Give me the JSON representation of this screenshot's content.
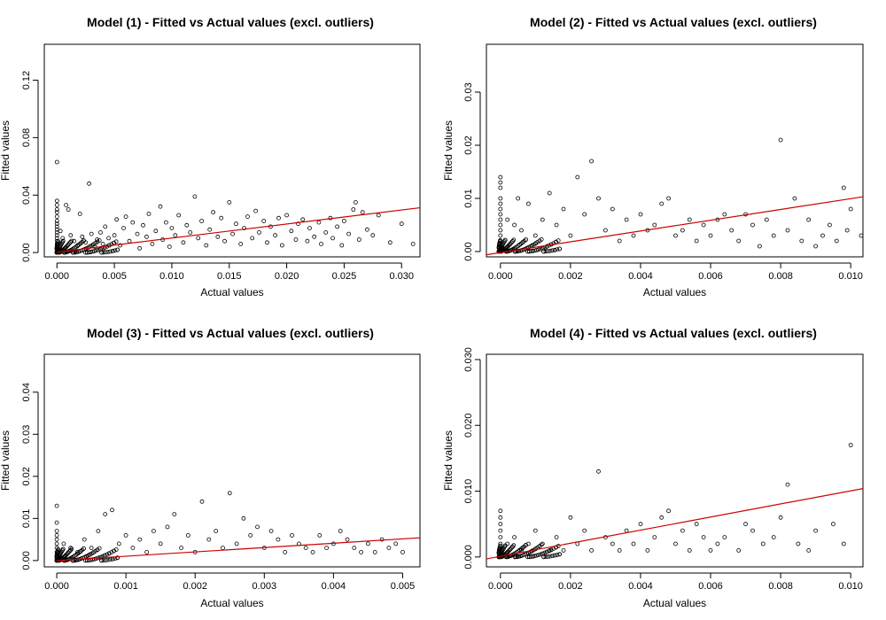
{
  "chart_data": [
    {
      "type": "scatter",
      "title": "Model (1) - Fitted vs Actual values (excl. outliers)",
      "xlabel": "Actual values",
      "ylabel": "Fitted values",
      "xlim": [
        -0.0011,
        0.0316
      ],
      "ylim": [
        -0.003,
        0.145
      ],
      "xticks": [
        0,
        0.005,
        0.01,
        0.015,
        0.02,
        0.025,
        0.03
      ],
      "xtick_labels": [
        "0.000",
        "0.005",
        "0.010",
        "0.015",
        "0.020",
        "0.025",
        "0.030"
      ],
      "yticks": [
        0,
        0.04,
        0.08,
        0.12
      ],
      "ytick_labels": [
        "0.00",
        "0.04",
        "0.08",
        "0.12"
      ],
      "fit_line": {
        "color": "#cc0000",
        "x": [
          0,
          0.0316
        ],
        "y": [
          0.0003,
          0.0312
        ]
      },
      "points": [
        [
          0,
          0.063
        ],
        [
          0,
          0.036
        ],
        [
          0,
          0.033
        ],
        [
          0,
          0.03
        ],
        [
          0,
          0.028
        ],
        [
          0,
          0.025
        ],
        [
          0,
          0.022
        ],
        [
          0,
          0.02
        ],
        [
          0,
          0.018
        ],
        [
          0,
          0.016
        ],
        [
          0,
          0.014
        ],
        [
          0,
          0.012
        ],
        [
          0,
          0.01
        ],
        [
          0,
          0.008
        ],
        [
          0,
          0.006
        ],
        [
          0,
          0.004
        ],
        [
          0,
          0.002
        ],
        [
          0,
          0.001
        ],
        [
          0.0003,
          0.015
        ],
        [
          0.0005,
          0.01
        ],
        [
          0.0008,
          0.033
        ],
        [
          0.001,
          0.03
        ],
        [
          0.0012,
          0.012
        ],
        [
          0.0015,
          0.008
        ],
        [
          0.0018,
          0.005
        ],
        [
          0.002,
          0.027
        ],
        [
          0.0022,
          0.011
        ],
        [
          0.0025,
          0.007
        ],
        [
          0.0028,
          0.048
        ],
        [
          0.003,
          0.013
        ],
        [
          0.0033,
          0.004
        ],
        [
          0.0035,
          0.009
        ],
        [
          0.0038,
          0.014
        ],
        [
          0.004,
          0.006
        ],
        [
          0.0042,
          0.018
        ],
        [
          0.0045,
          0.01
        ],
        [
          0.005,
          0.012
        ],
        [
          0.0052,
          0.023
        ],
        [
          0.0055,
          0.005
        ],
        [
          0.0058,
          0.017
        ],
        [
          0.006,
          0.025
        ],
        [
          0.0063,
          0.008
        ],
        [
          0.0066,
          0.021
        ],
        [
          0.007,
          0.013
        ],
        [
          0.0072,
          0.003
        ],
        [
          0.0075,
          0.019
        ],
        [
          0.0078,
          0.011
        ],
        [
          0.008,
          0.027
        ],
        [
          0.0083,
          0.006
        ],
        [
          0.0086,
          0.015
        ],
        [
          0.009,
          0.032
        ],
        [
          0.0092,
          0.009
        ],
        [
          0.0095,
          0.021
        ],
        [
          0.0098,
          0.004
        ],
        [
          0.01,
          0.017
        ],
        [
          0.0103,
          0.012
        ],
        [
          0.0106,
          0.026
        ],
        [
          0.011,
          0.007
        ],
        [
          0.0113,
          0.019
        ],
        [
          0.0116,
          0.014
        ],
        [
          0.012,
          0.039
        ],
        [
          0.0123,
          0.01
        ],
        [
          0.0126,
          0.022
        ],
        [
          0.013,
          0.005
        ],
        [
          0.0133,
          0.016
        ],
        [
          0.0136,
          0.028
        ],
        [
          0.014,
          0.011
        ],
        [
          0.0143,
          0.024
        ],
        [
          0.0146,
          0.008
        ],
        [
          0.015,
          0.035
        ],
        [
          0.0153,
          0.013
        ],
        [
          0.0156,
          0.02
        ],
        [
          0.016,
          0.006
        ],
        [
          0.0163,
          0.017
        ],
        [
          0.0166,
          0.025
        ],
        [
          0.017,
          0.01
        ],
        [
          0.0173,
          0.029
        ],
        [
          0.0176,
          0.014
        ],
        [
          0.018,
          0.022
        ],
        [
          0.0183,
          0.007
        ],
        [
          0.0186,
          0.018
        ],
        [
          0.019,
          0.012
        ],
        [
          0.0193,
          0.024
        ],
        [
          0.0196,
          0.005
        ],
        [
          0.02,
          0.026
        ],
        [
          0.0204,
          0.015
        ],
        [
          0.0208,
          0.009
        ],
        [
          0.021,
          0.02
        ],
        [
          0.0214,
          0.023
        ],
        [
          0.0218,
          0.008
        ],
        [
          0.022,
          0.017
        ],
        [
          0.0224,
          0.011
        ],
        [
          0.0228,
          0.021
        ],
        [
          0.023,
          0.006
        ],
        [
          0.0234,
          0.014
        ],
        [
          0.0238,
          0.024
        ],
        [
          0.024,
          0.01
        ],
        [
          0.0244,
          0.018
        ],
        [
          0.0248,
          0.005
        ],
        [
          0.025,
          0.022
        ],
        [
          0.0254,
          0.013
        ],
        [
          0.0258,
          0.03
        ],
        [
          0.026,
          0.035
        ],
        [
          0.0263,
          0.009
        ],
        [
          0.0266,
          0.028
        ],
        [
          0.027,
          0.016
        ],
        [
          0.0275,
          0.012
        ],
        [
          0.028,
          0.026
        ],
        [
          0.029,
          0.007
        ],
        [
          0.03,
          0.02
        ],
        [
          0.031,
          0.006
        ]
      ]
    },
    {
      "type": "scatter",
      "title": "Model (2) - Fitted vs Actual values (excl. outliers)",
      "xlabel": "Actual values",
      "ylabel": "Fitted values",
      "xlim": [
        -0.0004,
        0.01035
      ],
      "ylim": [
        -0.001,
        0.039
      ],
      "xticks": [
        0,
        0.002,
        0.004,
        0.006,
        0.008,
        0.01
      ],
      "xtick_labels": [
        "0.000",
        "0.002",
        "0.004",
        "0.006",
        "0.008",
        "0.010"
      ],
      "yticks": [
        0,
        0.01,
        0.02,
        0.03
      ],
      "ytick_labels": [
        "0.00",
        "0.01",
        "0.02",
        "0.03"
      ],
      "fit_line": {
        "color": "#cc0000",
        "x": [
          -0.0004,
          0.01035
        ],
        "y": [
          -0.0006,
          0.0103
        ]
      },
      "points": [
        [
          0,
          0.014
        ],
        [
          0,
          0.013
        ],
        [
          0,
          0.012
        ],
        [
          0,
          0.01
        ],
        [
          0,
          0.009
        ],
        [
          0,
          0.008
        ],
        [
          0,
          0.007
        ],
        [
          0,
          0.006
        ],
        [
          0,
          0.005
        ],
        [
          0,
          0.004
        ],
        [
          0,
          0.003
        ],
        [
          0,
          0.002
        ],
        [
          0,
          0.001
        ],
        [
          0,
          0.0005
        ],
        [
          0.0002,
          0.006
        ],
        [
          0.0004,
          0.005
        ],
        [
          0.0005,
          0.01
        ],
        [
          0.0006,
          0.004
        ],
        [
          0.0008,
          0.009
        ],
        [
          0.001,
          0.003
        ],
        [
          0.0012,
          0.006
        ],
        [
          0.0014,
          0.011
        ],
        [
          0.0016,
          0.005
        ],
        [
          0.0018,
          0.008
        ],
        [
          0.002,
          0.003
        ],
        [
          0.0022,
          0.014
        ],
        [
          0.0024,
          0.007
        ],
        [
          0.0026,
          0.017
        ],
        [
          0.0028,
          0.01
        ],
        [
          0.003,
          0.004
        ],
        [
          0.0032,
          0.008
        ],
        [
          0.0034,
          0.002
        ],
        [
          0.0036,
          0.006
        ],
        [
          0.0038,
          0.003
        ],
        [
          0.004,
          0.007
        ],
        [
          0.0042,
          0.004
        ],
        [
          0.0044,
          0.005
        ],
        [
          0.0046,
          0.009
        ],
        [
          0.0048,
          0.01
        ],
        [
          0.005,
          0.003
        ],
        [
          0.0052,
          0.004
        ],
        [
          0.0054,
          0.006
        ],
        [
          0.0056,
          0.002
        ],
        [
          0.0058,
          0.005
        ],
        [
          0.006,
          0.003
        ],
        [
          0.0062,
          0.006
        ],
        [
          0.0064,
          0.007
        ],
        [
          0.0066,
          0.004
        ],
        [
          0.0068,
          0.002
        ],
        [
          0.007,
          0.007
        ],
        [
          0.0072,
          0.005
        ],
        [
          0.0074,
          0.001
        ],
        [
          0.0076,
          0.006
        ],
        [
          0.0078,
          0.003
        ],
        [
          0.008,
          0.021
        ],
        [
          0.0082,
          0.004
        ],
        [
          0.0084,
          0.01
        ],
        [
          0.0086,
          0.002
        ],
        [
          0.0088,
          0.006
        ],
        [
          0.009,
          0.001
        ],
        [
          0.0092,
          0.003
        ],
        [
          0.0094,
          0.005
        ],
        [
          0.0096,
          0.002
        ],
        [
          0.0098,
          0.012
        ],
        [
          0.0099,
          0.004
        ],
        [
          0.01,
          0.008
        ],
        [
          0.0103,
          0.003
        ]
      ]
    },
    {
      "type": "scatter",
      "title": "Model (3) - Fitted vs Actual values (excl. outliers)",
      "xlabel": "Actual values",
      "ylabel": "Fitted values",
      "xlim": [
        -0.00018,
        0.00525
      ],
      "ylim": [
        -0.0015,
        0.049
      ],
      "xticks": [
        0,
        0.001,
        0.002,
        0.003,
        0.004,
        0.005
      ],
      "xtick_labels": [
        "0.000",
        "0.001",
        "0.002",
        "0.003",
        "0.004",
        "0.005"
      ],
      "yticks": [
        0,
        0.01,
        0.02,
        0.03,
        0.04
      ],
      "ytick_labels": [
        "0.00",
        "0.01",
        "0.02",
        "0.03",
        "0.04"
      ],
      "fit_line": {
        "color": "#cc0000",
        "x": [
          0,
          0.00525
        ],
        "y": [
          0,
          0.0054
        ]
      },
      "points": [
        [
          0,
          0.013
        ],
        [
          0,
          0.009
        ],
        [
          0,
          0.007
        ],
        [
          0,
          0.006
        ],
        [
          0,
          0.005
        ],
        [
          0,
          0.004
        ],
        [
          0,
          0.003
        ],
        [
          0,
          0.002
        ],
        [
          0,
          0.001
        ],
        [
          0,
          0.0005
        ],
        [
          0.0001,
          0.004
        ],
        [
          0.0002,
          0.003
        ],
        [
          0.0003,
          0.002
        ],
        [
          0.0004,
          0.005
        ],
        [
          0.0005,
          0.003
        ],
        [
          0.0006,
          0.007
        ],
        [
          0.0007,
          0.011
        ],
        [
          0.0008,
          0.012
        ],
        [
          0.0009,
          0.004
        ],
        [
          0.001,
          0.006
        ],
        [
          0.0011,
          0.003
        ],
        [
          0.0012,
          0.005
        ],
        [
          0.0013,
          0.002
        ],
        [
          0.0014,
          0.007
        ],
        [
          0.0015,
          0.004
        ],
        [
          0.0016,
          0.008
        ],
        [
          0.0017,
          0.011
        ],
        [
          0.0018,
          0.003
        ],
        [
          0.0019,
          0.006
        ],
        [
          0.002,
          0.002
        ],
        [
          0.0021,
          0.014
        ],
        [
          0.0022,
          0.005
        ],
        [
          0.0023,
          0.007
        ],
        [
          0.0024,
          0.003
        ],
        [
          0.0025,
          0.016
        ],
        [
          0.0026,
          0.004
        ],
        [
          0.0027,
          0.01
        ],
        [
          0.0028,
          0.006
        ],
        [
          0.0029,
          0.008
        ],
        [
          0.003,
          0.003
        ],
        [
          0.0031,
          0.007
        ],
        [
          0.0032,
          0.005
        ],
        [
          0.0033,
          0.002
        ],
        [
          0.0034,
          0.006
        ],
        [
          0.0035,
          0.004
        ],
        [
          0.0036,
          0.003
        ],
        [
          0.0037,
          0.002
        ],
        [
          0.0038,
          0.006
        ],
        [
          0.0039,
          0.003
        ],
        [
          0.004,
          0.004
        ],
        [
          0.0041,
          0.007
        ],
        [
          0.0042,
          0.005
        ],
        [
          0.0043,
          0.003
        ],
        [
          0.0044,
          0.002
        ],
        [
          0.0045,
          0.004
        ],
        [
          0.0046,
          0.002
        ],
        [
          0.0047,
          0.005
        ],
        [
          0.0048,
          0.003
        ],
        [
          0.0049,
          0.004
        ],
        [
          0.005,
          0.002
        ]
      ]
    },
    {
      "type": "scatter",
      "title": "Model (4) - Fitted vs Actual values (excl. outliers)",
      "xlabel": "Actual values",
      "ylabel": "Fitted values",
      "xlim": [
        -0.0004,
        0.01035
      ],
      "ylim": [
        -0.0015,
        0.0308
      ],
      "xticks": [
        0,
        0.002,
        0.004,
        0.006,
        0.008,
        0.01
      ],
      "xtick_labels": [
        "0.000",
        "0.002",
        "0.004",
        "0.006",
        "0.008",
        "0.010"
      ],
      "yticks": [
        0,
        0.01,
        0.02,
        0.03
      ],
      "ytick_labels": [
        "0.000",
        "0.010",
        "0.020",
        "0.030"
      ],
      "fit_line": {
        "color": "#cc0000",
        "x": [
          -0.0004,
          0.01035
        ],
        "y": [
          -0.0003,
          0.0104
        ]
      },
      "points": [
        [
          0,
          0.007
        ],
        [
          0,
          0.006
        ],
        [
          0,
          0.005
        ],
        [
          0,
          0.004
        ],
        [
          0,
          0.003
        ],
        [
          0,
          0.002
        ],
        [
          0,
          0.001
        ],
        [
          0,
          0.0005
        ],
        [
          0.0002,
          0.002
        ],
        [
          0.0004,
          0.003
        ],
        [
          0.0006,
          0.001
        ],
        [
          0.0008,
          0.002
        ],
        [
          0.001,
          0.004
        ],
        [
          0.0012,
          0.002
        ],
        [
          0.0014,
          0.001
        ],
        [
          0.0016,
          0.003
        ],
        [
          0.0018,
          0.001
        ],
        [
          0.002,
          0.006
        ],
        [
          0.0022,
          0.002
        ],
        [
          0.0024,
          0.004
        ],
        [
          0.0026,
          0.001
        ],
        [
          0.0028,
          0.013
        ],
        [
          0.003,
          0.003
        ],
        [
          0.0032,
          0.002
        ],
        [
          0.0034,
          0.001
        ],
        [
          0.0036,
          0.004
        ],
        [
          0.0038,
          0.002
        ],
        [
          0.004,
          0.005
        ],
        [
          0.0042,
          0.001
        ],
        [
          0.0044,
          0.003
        ],
        [
          0.0046,
          0.006
        ],
        [
          0.0048,
          0.007
        ],
        [
          0.005,
          0.002
        ],
        [
          0.0052,
          0.004
        ],
        [
          0.0054,
          0.001
        ],
        [
          0.0056,
          0.005
        ],
        [
          0.0058,
          0.003
        ],
        [
          0.006,
          0.001
        ],
        [
          0.0062,
          0.002
        ],
        [
          0.0064,
          0.003
        ],
        [
          0.0068,
          0.001
        ],
        [
          0.007,
          0.005
        ],
        [
          0.0072,
          0.004
        ],
        [
          0.0075,
          0.002
        ],
        [
          0.0078,
          0.003
        ],
        [
          0.008,
          0.006
        ],
        [
          0.0082,
          0.011
        ],
        [
          0.0085,
          0.002
        ],
        [
          0.0088,
          0.001
        ],
        [
          0.009,
          0.004
        ],
        [
          0.0095,
          0.005
        ],
        [
          0.0098,
          0.002
        ],
        [
          0.01,
          0.017
        ]
      ]
    }
  ]
}
